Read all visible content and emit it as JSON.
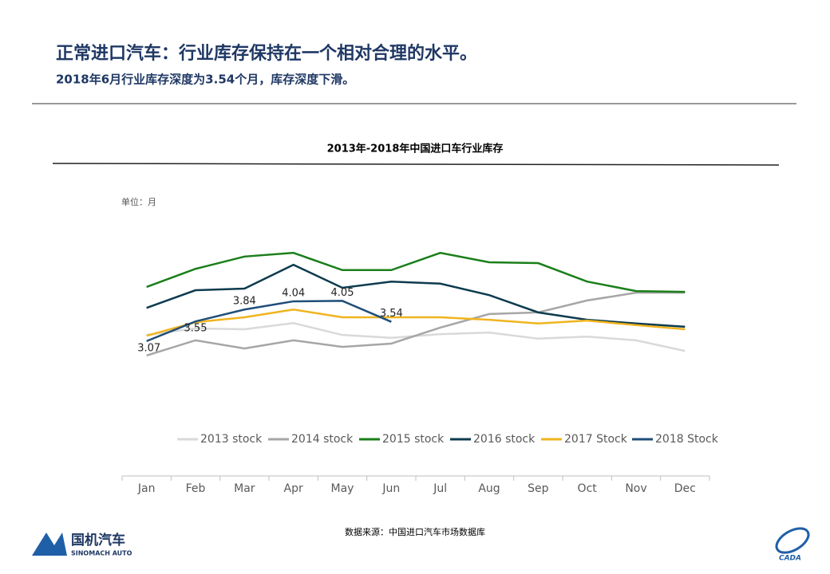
{
  "header": {
    "title": "正常进口汽车：行业库存保持在一个相对合理的水平。",
    "subtitle": "2018年6月行业库存深度为3.54个月，库存深度下滑。"
  },
  "chart_data": {
    "type": "line",
    "title": "2013年-2018年中国进口车行业库存",
    "y_label": "单位：月",
    "categories": [
      "Jan",
      "Feb",
      "Mar",
      "Apr",
      "May",
      "Jun",
      "Jul",
      "Aug",
      "Sep",
      "Oct",
      "Nov",
      "Dec"
    ],
    "ylim": [
      0,
      6
    ],
    "series": [
      {
        "name": "2013 stock",
        "color": "#d9d9d9",
        "values": [
          3.22,
          3.38,
          3.36,
          3.51,
          3.22,
          3.15,
          3.24,
          3.28,
          3.13,
          3.18,
          3.09,
          2.83
        ]
      },
      {
        "name": "2014 stock",
        "color": "#a6a6a6",
        "values": [
          2.72,
          3.09,
          2.89,
          3.09,
          2.93,
          3.01,
          3.4,
          3.73,
          3.77,
          4.06,
          4.25,
          4.25
        ]
      },
      {
        "name": "2015 stock",
        "color": "#1a7f1a",
        "values": [
          4.39,
          4.83,
          5.13,
          5.22,
          4.8,
          4.8,
          5.22,
          4.99,
          4.97,
          4.52,
          4.29,
          4.27
        ]
      },
      {
        "name": "2016 stock",
        "color": "#0d3b4f",
        "values": [
          3.88,
          4.31,
          4.35,
          4.93,
          4.37,
          4.52,
          4.47,
          4.19,
          3.77,
          3.59,
          3.5,
          3.42
        ]
      },
      {
        "name": "2017 Stock",
        "color": "#f0b41e",
        "values": [
          3.2,
          3.53,
          3.65,
          3.84,
          3.65,
          3.65,
          3.65,
          3.59,
          3.5,
          3.57,
          3.46,
          3.36
        ]
      },
      {
        "name": "2018 Stock",
        "color": "#1f4e79",
        "values": [
          3.07,
          3.55,
          3.84,
          4.04,
          4.05,
          3.54,
          null,
          null,
          null,
          null,
          null,
          null
        ],
        "data_labels": true
      }
    ]
  },
  "source": "数据来源：中国进口汽车市场数据库",
  "footer": {
    "logo_cn": "国机汽车",
    "logo_en": "SINOMACH AUTO",
    "logo_right": "CADA"
  }
}
